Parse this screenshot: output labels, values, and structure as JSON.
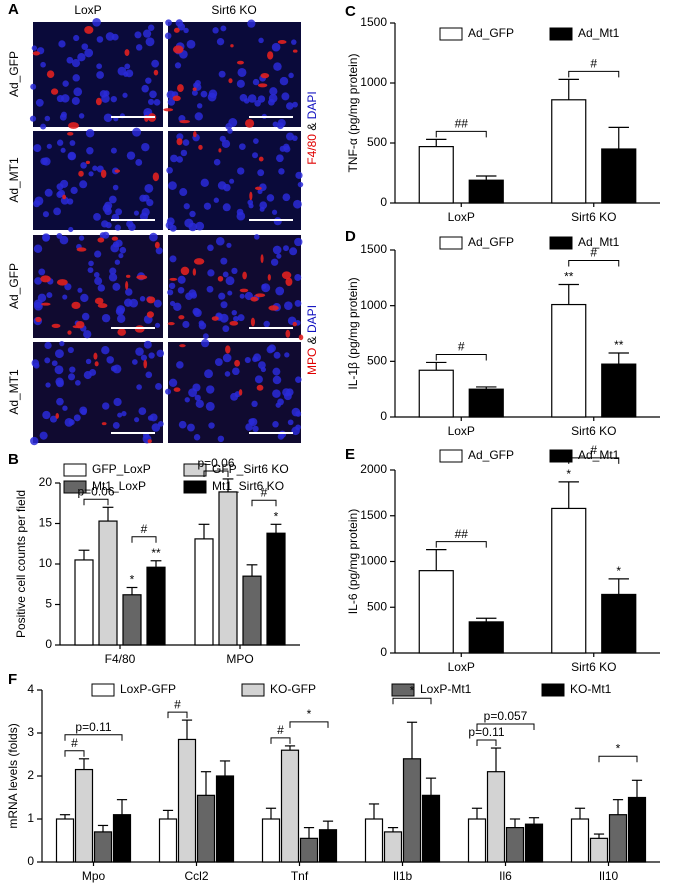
{
  "panel_a": {
    "panel_label": "A",
    "columns": [
      "LoxP",
      "Sirt6 KO"
    ],
    "rows": [
      "Ad_GFP",
      "Ad_MT1",
      "Ad_GFP",
      "Ad_MT1"
    ],
    "stains": [
      {
        "marker": "F4/80",
        "joiner": "&",
        "counter": "DAPI"
      },
      {
        "marker": "MPO",
        "joiner": "&",
        "counter": "DAPI"
      }
    ]
  },
  "chart_data": [
    {
      "type": "bar",
      "panel_label": "B",
      "ylabel": "Positive cell counts per field",
      "categories": [
        "F4/80",
        "MPO"
      ],
      "series": [
        {
          "name": "GFP_LoxP",
          "color": "#ffffff",
          "values": [
            10.5,
            13.1
          ],
          "errors": [
            1.2,
            1.8
          ]
        },
        {
          "name": "GFP_Sirt6 KO",
          "color": "#d3d3d3",
          "values": [
            15.3,
            18.9
          ],
          "errors": [
            1.7,
            1.6
          ]
        },
        {
          "name": "Mt1_LoxP",
          "color": "#666666",
          "values": [
            6.2,
            8.5
          ],
          "errors": [
            0.9,
            1.4
          ]
        },
        {
          "name": "Mt1_Sirt6 KO",
          "color": "#000000",
          "values": [
            9.6,
            13.8
          ],
          "errors": [
            0.8,
            1.1
          ]
        }
      ],
      "ylim": [
        0,
        20
      ],
      "yticks": [
        0,
        5,
        10,
        15,
        20
      ],
      "annotations": [
        "p=0.06",
        "#",
        "*",
        "**",
        "p=0.06",
        "#",
        "*"
      ]
    },
    {
      "type": "bar",
      "panel_label": "C",
      "ylabel": "TNF-α (pg/mg protein)",
      "categories": [
        "LoxP",
        "Sirt6 KO"
      ],
      "series": [
        {
          "name": "Ad_GFP",
          "color": "#ffffff",
          "values": [
            470,
            860
          ],
          "errors": [
            60,
            170
          ]
        },
        {
          "name": "Ad_Mt1",
          "color": "#000000",
          "values": [
            190,
            450
          ],
          "errors": [
            35,
            180
          ]
        }
      ],
      "ylim": [
        0,
        1500
      ],
      "yticks": [
        0,
        500,
        1000,
        1500
      ],
      "annotations": [
        "##",
        "#"
      ]
    },
    {
      "type": "bar",
      "panel_label": "D",
      "ylabel": "IL-1β (pg/mg protein)",
      "categories": [
        "LoxP",
        "Sirt6 KO"
      ],
      "series": [
        {
          "name": "Ad_GFP",
          "color": "#ffffff",
          "values": [
            420,
            1010
          ],
          "errors": [
            70,
            180
          ]
        },
        {
          "name": "Ad_Mt1",
          "color": "#000000",
          "values": [
            250,
            475
          ],
          "errors": [
            20,
            100
          ]
        }
      ],
      "ylim": [
        0,
        1500
      ],
      "yticks": [
        0,
        500,
        1000,
        1500
      ],
      "annotations": [
        "#",
        "**",
        "#",
        "**"
      ]
    },
    {
      "type": "bar",
      "panel_label": "E",
      "ylabel": "IL-6 (pg/mg protein)",
      "categories": [
        "LoxP",
        "Sirt6 KO"
      ],
      "series": [
        {
          "name": "Ad_GFP",
          "color": "#ffffff",
          "values": [
            900,
            1580
          ],
          "errors": [
            230,
            290
          ]
        },
        {
          "name": "Ad_Mt1",
          "color": "#000000",
          "values": [
            340,
            640
          ],
          "errors": [
            40,
            170
          ]
        }
      ],
      "ylim": [
        0,
        2000
      ],
      "yticks": [
        0,
        500,
        1000,
        1500,
        2000
      ],
      "annotations": [
        "##",
        "*",
        "#",
        "*"
      ]
    },
    {
      "type": "bar",
      "panel_label": "F",
      "ylabel": "mRNA levels (folds)",
      "categories": [
        "Mpo",
        "Ccl2",
        "Tnf",
        "Il1b",
        "Il6",
        "Il10"
      ],
      "series": [
        {
          "name": "LoxP-GFP",
          "color": "#ffffff",
          "values": [
            1.0,
            1.0,
            1.0,
            1.0,
            1.0,
            1.0
          ],
          "errors": [
            0.1,
            0.2,
            0.25,
            0.35,
            0.25,
            0.25
          ]
        },
        {
          "name": "KO-GFP",
          "color": "#d3d3d3",
          "values": [
            2.15,
            2.85,
            2.6,
            0.7,
            2.1,
            0.55
          ],
          "errors": [
            0.25,
            0.45,
            0.1,
            0.1,
            0.55,
            0.1
          ]
        },
        {
          "name": "LoxP-Mt1",
          "color": "#666666",
          "values": [
            0.7,
            1.55,
            0.55,
            2.4,
            0.8,
            1.1
          ],
          "errors": [
            0.15,
            0.55,
            0.25,
            0.85,
            0.2,
            0.35
          ]
        },
        {
          "name": "KO-Mt1",
          "color": "#000000",
          "values": [
            1.1,
            2.0,
            0.75,
            1.55,
            0.88,
            1.5
          ],
          "errors": [
            0.35,
            0.35,
            0.2,
            0.4,
            0.15,
            0.4
          ]
        }
      ],
      "ylim": [
        0,
        4
      ],
      "yticks": [
        0,
        1,
        2,
        3,
        4
      ],
      "annotations": [
        "#",
        "p=0.11",
        "#",
        "#",
        "*",
        "*",
        "p=0.11",
        "p=0.057",
        "*"
      ]
    }
  ]
}
